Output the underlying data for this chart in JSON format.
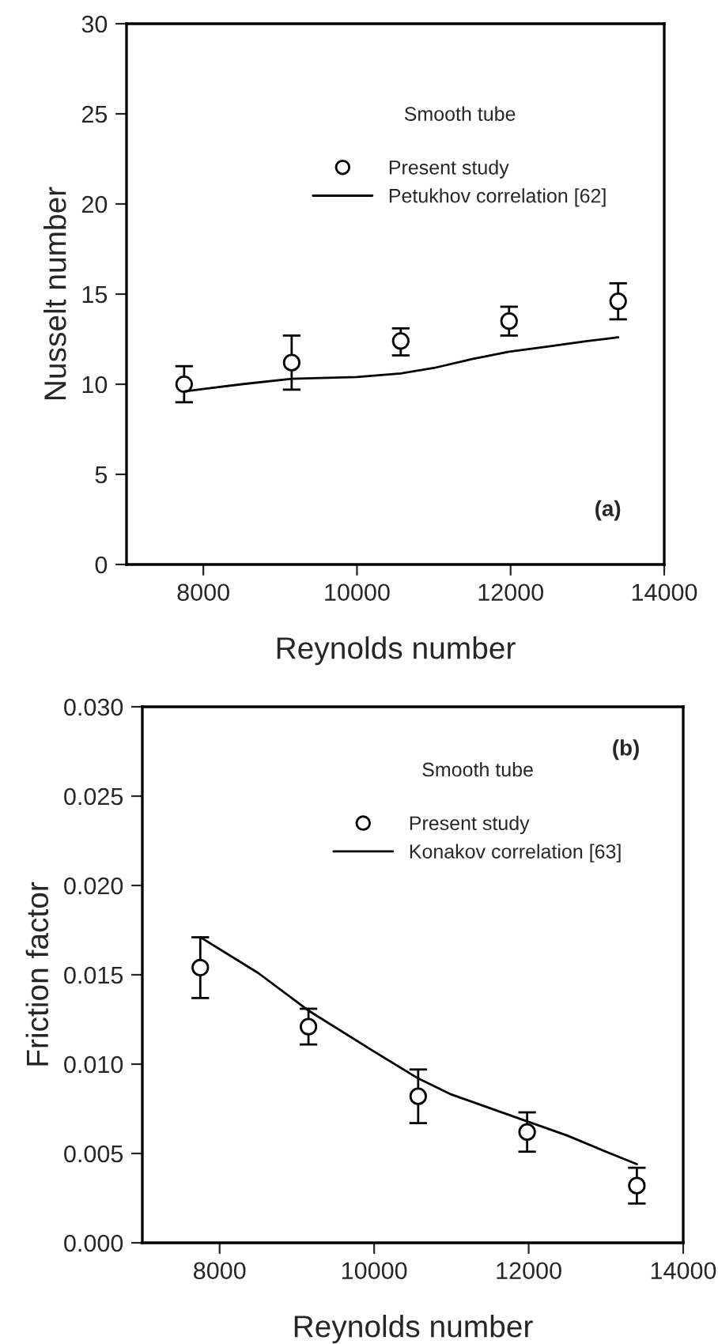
{
  "chart_data": [
    {
      "type": "scatter",
      "xlabel": "Reynolds number",
      "ylabel": "Nusselt number",
      "legend_title": "Smooth tube",
      "annotations": [
        "(a)"
      ],
      "xlim": [
        7000,
        14000
      ],
      "xticks": [
        8000,
        10000,
        12000,
        14000
      ],
      "ylim": [
        0,
        30
      ],
      "yticks": [
        0,
        5,
        10,
        15,
        20,
        25,
        30
      ],
      "grid": false,
      "legend": "top",
      "series": [
        {
          "name": "Present study",
          "marker": "circle",
          "color": "#000000",
          "x": [
            7750,
            9150,
            10570,
            11980,
            13400
          ],
          "values": [
            10.0,
            11.2,
            12.4,
            13.5,
            14.6
          ],
          "errors": [
            [
              9.0,
              11.0
            ],
            [
              9.7,
              12.7
            ],
            [
              11.6,
              13.1
            ],
            [
              12.7,
              14.3
            ],
            [
              13.6,
              15.6
            ]
          ]
        },
        {
          "name": "Petukhov correlation [62]",
          "type": "line",
          "line_style": "solid",
          "color": "#000000",
          "x": [
            7750,
            8500,
            9150,
            10000,
            10570,
            11000,
            11500,
            11980,
            12500,
            13000,
            13400
          ],
          "values": [
            9.6,
            10.0,
            10.3,
            10.4,
            10.6,
            10.9,
            11.4,
            11.8,
            12.1,
            12.4,
            12.6
          ]
        }
      ]
    },
    {
      "type": "scatter",
      "xlabel": "Reynolds number",
      "ylabel": "Friction factor",
      "legend_title": "Smooth tube",
      "annotations": [
        "(b)"
      ],
      "xlim": [
        7000,
        14000
      ],
      "xticks": [
        8000,
        10000,
        12000,
        14000
      ],
      "ylim": [
        0,
        0.03
      ],
      "yticks": [
        {
          "value": 0,
          "label": "0.000"
        },
        {
          "value": 0.005,
          "label": "0.005"
        },
        {
          "value": 0.01,
          "label": "0.010"
        },
        {
          "value": 0.015,
          "label": "0.015"
        },
        {
          "value": 0.02,
          "label": "0.020"
        },
        {
          "value": 0.025,
          "label": "0.025"
        },
        {
          "value": 0.03,
          "label": "0.030"
        }
      ],
      "grid": false,
      "legend": "top",
      "series": [
        {
          "name": "Present study",
          "marker": "circle",
          "color": "#000000",
          "x": [
            7750,
            9150,
            10570,
            11980,
            13400
          ],
          "values": [
            0.0154,
            0.0121,
            0.0082,
            0.0062,
            0.0032
          ],
          "errors": [
            [
              0.0137,
              0.0171
            ],
            [
              0.0111,
              0.0131
            ],
            [
              0.0067,
              0.0097
            ],
            [
              0.0051,
              0.0073
            ],
            [
              0.0022,
              0.0042
            ]
          ]
        },
        {
          "name": "Konakov correlation [63]",
          "type": "line",
          "line_style": "solid",
          "color": "#000000",
          "x": [
            7750,
            8500,
            9150,
            10000,
            10570,
            11000,
            11980,
            12500,
            13000,
            13400
          ],
          "values": [
            0.0171,
            0.0151,
            0.013,
            0.0107,
            0.0092,
            0.0083,
            0.0068,
            0.006,
            0.0051,
            0.0044
          ]
        }
      ]
    }
  ]
}
